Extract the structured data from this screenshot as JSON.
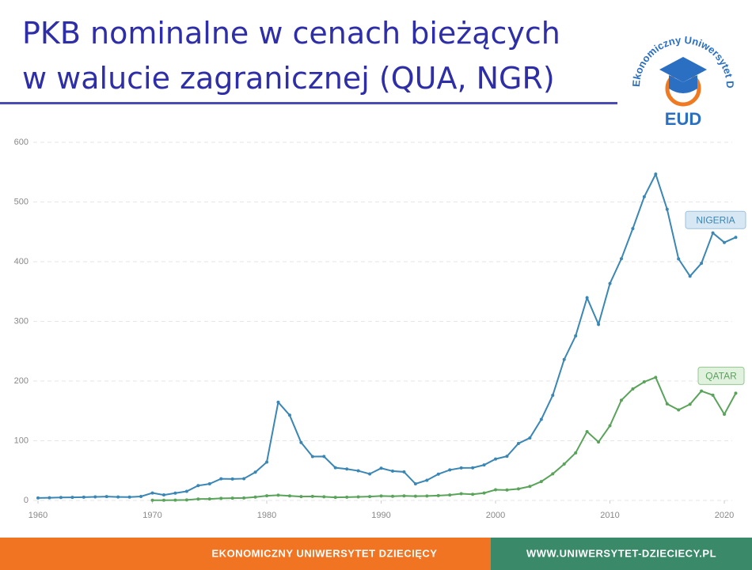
{
  "chart_data": {
    "type": "line",
    "title": [
      "PKB nominalne w cenach bieżących",
      "w walucie zagranicznej (QUA, NGR)"
    ],
    "series": [
      {
        "name": "NIGERIA",
        "color": "#3a86b4",
        "x": [
          1960,
          1961,
          1962,
          1963,
          1964,
          1965,
          1966,
          1967,
          1968,
          1969,
          1970,
          1971,
          1972,
          1973,
          1974,
          1975,
          1976,
          1977,
          1978,
          1979,
          1980,
          1981,
          1982,
          1983,
          1984,
          1985,
          1986,
          1987,
          1988,
          1989,
          1990,
          1991,
          1992,
          1993,
          1994,
          1995,
          1996,
          1997,
          1998,
          1999,
          2000,
          2001,
          2002,
          2003,
          2004,
          2005,
          2006,
          2007,
          2008,
          2009,
          2010,
          2011,
          2012,
          2013,
          2014,
          2015,
          2016,
          2017,
          2018,
          2019,
          2020,
          2021
        ],
        "values": [
          4.2,
          4.5,
          4.9,
          5.2,
          5.5,
          5.9,
          6.4,
          5.8,
          5.6,
          6.6,
          12.5,
          9.2,
          12.3,
          15.2,
          24.8,
          27.8,
          36.3,
          36,
          36.5,
          47.3,
          64.2,
          164.5,
          142.8,
          97.1,
          73.5,
          73.7,
          54.8,
          52.7,
          49.6,
          44.4,
          54,
          49.1,
          47.8,
          27.8,
          33.8,
          44.1,
          51.1,
          54.5,
          54.6,
          59.4,
          69.4,
          74,
          95.4,
          104.7,
          135.8,
          176.1,
          236.1,
          275.6,
          339.5,
          295,
          363.4,
          404.9,
          455.5,
          508.7,
          546.7,
          487.8,
          404.6,
          375.7,
          397.3,
          448.1,
          432.2,
          440.8
        ]
      },
      {
        "name": "QATAR",
        "color": "#5aa35a",
        "x": [
          1970,
          1971,
          1972,
          1973,
          1974,
          1975,
          1976,
          1977,
          1978,
          1979,
          1980,
          1981,
          1982,
          1983,
          1984,
          1985,
          1986,
          1987,
          1988,
          1989,
          1990,
          1991,
          1992,
          1993,
          1994,
          1995,
          1996,
          1997,
          1998,
          1999,
          2000,
          2001,
          2002,
          2003,
          2004,
          2005,
          2006,
          2007,
          2008,
          2009,
          2010,
          2011,
          2012,
          2013,
          2014,
          2015,
          2016,
          2017,
          2018,
          2019,
          2020,
          2021
        ],
        "values": [
          0.3,
          0.4,
          0.5,
          0.8,
          2.4,
          2.5,
          3.4,
          3.8,
          4.1,
          5.6,
          7.8,
          8.7,
          7.6,
          6.5,
          6.8,
          6.2,
          5.1,
          5.4,
          6.0,
          6.5,
          7.4,
          7.0,
          7.6,
          7.2,
          7.4,
          8.1,
          9.1,
          11.3,
          10.3,
          12.4,
          17.8,
          17.5,
          19.4,
          23.5,
          31.7,
          44.5,
          60.9,
          79.7,
          115.3,
          97.8,
          125.1,
          167.8,
          186.8,
          198.7,
          206.2,
          161.7,
          151.7,
          161.1,
          183.3,
          176.4,
          144.4,
          179.6
        ]
      }
    ],
    "xlim": [
      1959.5,
      2021.5
    ],
    "xticks": [
      1960,
      1970,
      1980,
      1990,
      2000,
      2010,
      2020
    ],
    "ylim": [
      0,
      600
    ],
    "yticks": [
      0,
      100,
      200,
      300,
      400,
      500,
      600
    ],
    "grid": true
  },
  "logo": {
    "ring": "Ekonomiczny Uniwersytet Dziecięcy",
    "initials": "EUD"
  },
  "footer": {
    "left": "EKONOMICZNY UNIWERSYTET DZIECIĘCY",
    "right": "WWW.UNIWERSYTET-DZIECIECY.PL"
  }
}
